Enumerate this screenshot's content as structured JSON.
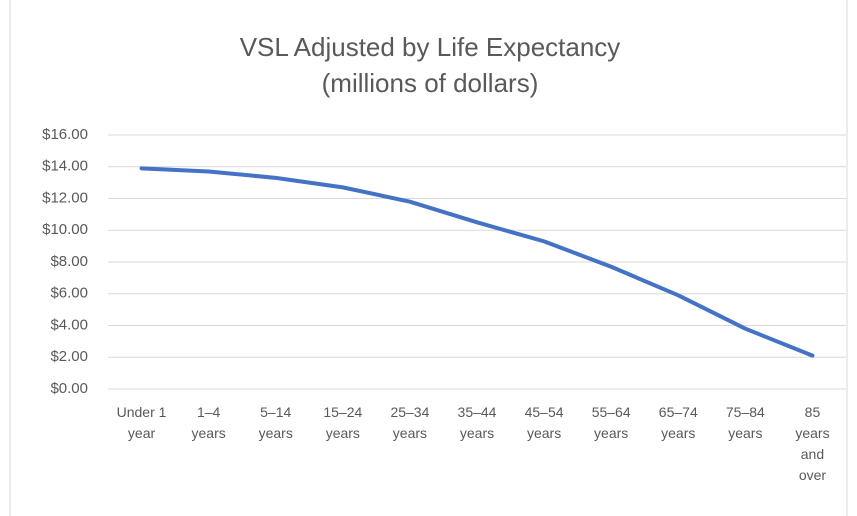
{
  "chart_data": {
    "type": "line",
    "title": "VSL Adjusted by Life Expectancy",
    "subtitle": "(millions of dollars)",
    "categories": [
      "Under 1 year",
      "1–4 years",
      "5–14 years",
      "15–24 years",
      "25–34 years",
      "35–44 years",
      "45–54 years",
      "55–64 years",
      "65–74 years",
      "75–84 years",
      "85 years and over"
    ],
    "series": [
      {
        "name": "VSL",
        "color": "#4472c4",
        "values": [
          13.9,
          13.7,
          13.3,
          12.7,
          11.8,
          10.5,
          9.3,
          7.7,
          5.9,
          3.8,
          2.1
        ]
      }
    ],
    "ylim": [
      0,
      16
    ],
    "yticks": [
      {
        "value": 0,
        "label": "$0.00"
      },
      {
        "value": 2,
        "label": "$2.00"
      },
      {
        "value": 4,
        "label": "$4.00"
      },
      {
        "value": 6,
        "label": "$6.00"
      },
      {
        "value": 8,
        "label": "$8.00"
      },
      {
        "value": 10,
        "label": "$10.00"
      },
      {
        "value": 12,
        "label": "$12.00"
      },
      {
        "value": 14,
        "label": "$14.00"
      },
      {
        "value": 16,
        "label": "$16.00"
      }
    ],
    "grid": true
  }
}
